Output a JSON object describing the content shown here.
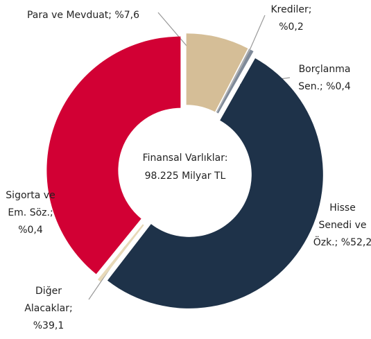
{
  "chart_data": {
    "type": "donut",
    "center_text": [
      "Finansal Varlıklar:",
      "98.225 Milyar TL"
    ],
    "values": [
      7.6,
      0.2,
      0.4,
      52.2,
      0.4,
      39.1
    ],
    "value_labels": [
      [
        "Para ve Mevduat; %7,6"
      ],
      [
        "Krediler;",
        "%0,2"
      ],
      [
        "Borçlanma",
        "Sen.; %0,4"
      ],
      [
        "Hisse",
        "Senedi ve",
        "Özk.; %52,2"
      ],
      [
        "Sigorta ve",
        "Em. Söz.;",
        "%0,4"
      ],
      [
        "Diğer",
        "Alacaklar;",
        "%39,1"
      ]
    ],
    "colors": [
      "#d5be97",
      "#a7a9ac",
      "#7f8a99",
      "#1e3249",
      "#e8d9b8",
      "#d20034"
    ]
  }
}
